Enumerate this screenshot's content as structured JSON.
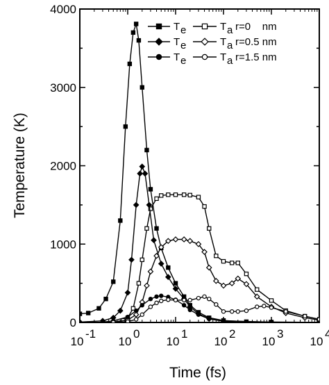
{
  "chart_data": {
    "type": "line",
    "title": "",
    "xlabel": "Time (fs)",
    "ylabel": "Temperature (K)",
    "xscale": "log",
    "xlim": [
      0.1,
      10000
    ],
    "ylim": [
      0,
      4000
    ],
    "x_ticks": [
      {
        "value": 0.1,
        "base": "10",
        "exp": "-1"
      },
      {
        "value": 1,
        "base": "10",
        "exp": "0"
      },
      {
        "value": 10,
        "base": "10",
        "exp": "1"
      },
      {
        "value": 100,
        "base": "10",
        "exp": "2"
      },
      {
        "value": 1000,
        "base": "10",
        "exp": "3"
      },
      {
        "value": 10000,
        "base": "10",
        "exp": "4"
      }
    ],
    "y_ticks": [
      "0",
      "1000",
      "2000",
      "3000",
      "4000"
    ],
    "grid": false,
    "legend_position": "top-right",
    "legend": [
      {
        "label_e": "T",
        "sub_e": "e",
        "label_a": "T",
        "sub_a": "a",
        "caption": "r=0    nm",
        "marker_e": "square-filled",
        "marker_a": "square-open"
      },
      {
        "label_e": "T",
        "sub_e": "e",
        "label_a": "T",
        "sub_a": "a",
        "caption": "r=0.5 nm",
        "marker_e": "diamond-filled",
        "marker_a": "diamond-open"
      },
      {
        "label_e": "T",
        "sub_e": "e",
        "label_a": "T",
        "sub_a": "a",
        "caption": "r=1.5 nm",
        "marker_e": "circle-filled",
        "marker_a": "circle-open"
      }
    ],
    "series": [
      {
        "marker": "square-filled",
        "color": "#000000",
        "points": [
          [
            0.1,
            110
          ],
          [
            0.15,
            120
          ],
          [
            0.25,
            180
          ],
          [
            0.35,
            300
          ],
          [
            0.5,
            520
          ],
          [
            0.7,
            1300
          ],
          [
            0.9,
            2500
          ],
          [
            1.1,
            3300
          ],
          [
            1.3,
            3700
          ],
          [
            1.5,
            3810
          ],
          [
            1.7,
            3600
          ],
          [
            2,
            3000
          ],
          [
            2.5,
            2200
          ],
          [
            3,
            1700
          ],
          [
            4,
            1200
          ],
          [
            5,
            950
          ],
          [
            7,
            700
          ],
          [
            10,
            500
          ],
          [
            15,
            330
          ],
          [
            20,
            220
          ],
          [
            30,
            130
          ],
          [
            50,
            60
          ],
          [
            100,
            25
          ],
          [
            300,
            10
          ],
          [
            1000,
            5
          ],
          [
            10000,
            2
          ]
        ]
      },
      {
        "marker": "square-open",
        "color": "#000000",
        "points": [
          [
            0.5,
            5
          ],
          [
            0.8,
            25
          ],
          [
            1,
            60
          ],
          [
            1.3,
            180
          ],
          [
            1.7,
            500
          ],
          [
            2,
            800
          ],
          [
            2.5,
            1200
          ],
          [
            3,
            1450
          ],
          [
            4,
            1580
          ],
          [
            5,
            1620
          ],
          [
            7,
            1630
          ],
          [
            10,
            1630
          ],
          [
            15,
            1630
          ],
          [
            20,
            1625
          ],
          [
            30,
            1600
          ],
          [
            40,
            1480
          ],
          [
            50,
            1200
          ],
          [
            70,
            850
          ],
          [
            100,
            780
          ],
          [
            150,
            760
          ],
          [
            200,
            760
          ],
          [
            300,
            620
          ],
          [
            500,
            420
          ],
          [
            1000,
            280
          ],
          [
            2000,
            150
          ],
          [
            5000,
            80
          ],
          [
            10000,
            40
          ]
        ]
      },
      {
        "marker": "diamond-filled",
        "color": "#000000",
        "points": [
          [
            0.1,
            5
          ],
          [
            0.3,
            20
          ],
          [
            0.5,
            60
          ],
          [
            0.7,
            150
          ],
          [
            1,
            380
          ],
          [
            1.2,
            800
          ],
          [
            1.5,
            1500
          ],
          [
            1.8,
            1900
          ],
          [
            2,
            1990
          ],
          [
            2.3,
            1900
          ],
          [
            2.8,
            1500
          ],
          [
            3.5,
            1050
          ],
          [
            5,
            750
          ],
          [
            7,
            580
          ],
          [
            10,
            430
          ],
          [
            15,
            300
          ],
          [
            20,
            200
          ],
          [
            30,
            110
          ],
          [
            50,
            50
          ],
          [
            100,
            20
          ],
          [
            1000,
            5
          ],
          [
            10000,
            2
          ]
        ]
      },
      {
        "marker": "diamond-open",
        "color": "#000000",
        "points": [
          [
            0.5,
            5
          ],
          [
            1,
            30
          ],
          [
            1.5,
            100
          ],
          [
            2,
            260
          ],
          [
            2.5,
            470
          ],
          [
            3,
            650
          ],
          [
            4,
            850
          ],
          [
            5,
            960
          ],
          [
            7,
            1040
          ],
          [
            10,
            1060
          ],
          [
            15,
            1060
          ],
          [
            20,
            1040
          ],
          [
            30,
            1000
          ],
          [
            40,
            900
          ],
          [
            50,
            700
          ],
          [
            70,
            530
          ],
          [
            100,
            470
          ],
          [
            150,
            500
          ],
          [
            200,
            560
          ],
          [
            300,
            490
          ],
          [
            500,
            330
          ],
          [
            1000,
            200
          ],
          [
            2000,
            120
          ],
          [
            5000,
            60
          ],
          [
            10000,
            30
          ]
        ]
      },
      {
        "marker": "circle-filled",
        "color": "#000000",
        "points": [
          [
            0.3,
            5
          ],
          [
            0.5,
            20
          ],
          [
            1,
            70
          ],
          [
            1.5,
            150
          ],
          [
            2,
            220
          ],
          [
            3,
            300
          ],
          [
            4,
            330
          ],
          [
            5,
            340
          ],
          [
            7,
            325
          ],
          [
            10,
            290
          ],
          [
            15,
            220
          ],
          [
            20,
            160
          ],
          [
            30,
            100
          ],
          [
            50,
            45
          ],
          [
            100,
            15
          ],
          [
            1000,
            3
          ],
          [
            10000,
            1
          ]
        ]
      },
      {
        "marker": "circle-open",
        "color": "#000000",
        "points": [
          [
            0.5,
            2
          ],
          [
            1,
            10
          ],
          [
            1.5,
            40
          ],
          [
            2,
            100
          ],
          [
            3,
            200
          ],
          [
            4,
            250
          ],
          [
            5,
            275
          ],
          [
            7,
            290
          ],
          [
            10,
            285
          ],
          [
            15,
            285
          ],
          [
            20,
            285
          ],
          [
            30,
            310
          ],
          [
            40,
            330
          ],
          [
            50,
            300
          ],
          [
            70,
            230
          ],
          [
            100,
            140
          ],
          [
            150,
            140
          ],
          [
            200,
            140
          ],
          [
            300,
            150
          ],
          [
            500,
            200
          ],
          [
            700,
            210
          ],
          [
            1000,
            190
          ],
          [
            2000,
            140
          ],
          [
            5000,
            80
          ],
          [
            10000,
            40
          ]
        ]
      }
    ]
  }
}
